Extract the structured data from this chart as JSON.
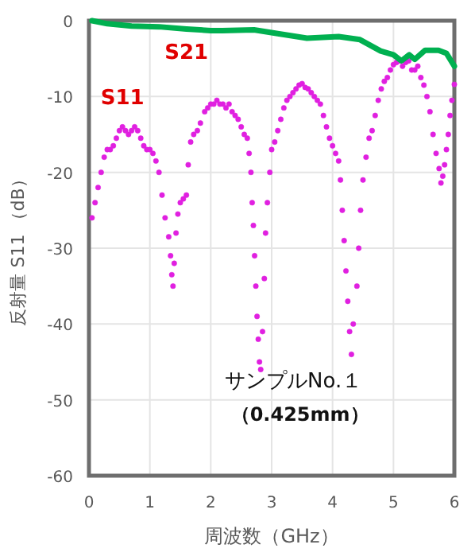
{
  "chart_data": {
    "type": "scatter",
    "xlabel": "周波数（GHz）",
    "ylabel": "反射量 S11 （dB）",
    "xlim": [
      0,
      6
    ],
    "xticks": [
      0,
      1,
      2,
      3,
      4,
      5,
      6
    ],
    "ylim": [
      -60,
      0
    ],
    "yticks": [
      -60,
      -50,
      -40,
      -30,
      -20,
      -10,
      0
    ],
    "grid": true,
    "annotations": [
      "サンプルNo.１",
      "（0.425mm）"
    ],
    "series": [
      {
        "name": "S11",
        "marker": "circle",
        "color": "#e020e0",
        "x": [
          0.05,
          0.1,
          0.15,
          0.2,
          0.25,
          0.3,
          0.35,
          0.4,
          0.45,
          0.5,
          0.55,
          0.6,
          0.65,
          0.7,
          0.75,
          0.8,
          0.85,
          0.9,
          0.95,
          1.0,
          1.05,
          1.1,
          1.15,
          1.2,
          1.25,
          1.31,
          1.34,
          1.36,
          1.38,
          1.4,
          1.43,
          1.46,
          1.5,
          1.55,
          1.6,
          1.63,
          1.67,
          1.72,
          1.78,
          1.83,
          1.9,
          1.95,
          2.0,
          2.05,
          2.1,
          2.15,
          2.2,
          2.25,
          2.3,
          2.35,
          2.4,
          2.45,
          2.5,
          2.55,
          2.6,
          2.63,
          2.66,
          2.68,
          2.7,
          2.72,
          2.74,
          2.76,
          2.78,
          2.8,
          2.82,
          2.85,
          2.88,
          2.9,
          2.93,
          2.97,
          3.0,
          3.05,
          3.1,
          3.15,
          3.2,
          3.25,
          3.3,
          3.35,
          3.4,
          3.45,
          3.5,
          3.55,
          3.6,
          3.65,
          3.7,
          3.75,
          3.8,
          3.85,
          3.9,
          3.95,
          4.0,
          4.05,
          4.1,
          4.13,
          4.16,
          4.19,
          4.22,
          4.25,
          4.28,
          4.31,
          4.34,
          4.4,
          4.43,
          4.46,
          4.5,
          4.55,
          4.6,
          4.65,
          4.7,
          4.75,
          4.8,
          4.85,
          4.9,
          4.95,
          5.0,
          5.05,
          5.1,
          5.15,
          5.2,
          5.25,
          5.3,
          5.35,
          5.4,
          5.45,
          5.5,
          5.55,
          5.6,
          5.65,
          5.7,
          5.75,
          5.78,
          5.81,
          5.84,
          5.87,
          5.9,
          5.93,
          5.96,
          6.0
        ],
        "values": [
          -26,
          -24,
          -22,
          -20,
          -18,
          -17,
          -17,
          -16.5,
          -15.5,
          -14.5,
          -14,
          -14.5,
          -15,
          -14.5,
          -14,
          -14.5,
          -15.5,
          -16.5,
          -17,
          -17,
          -17.5,
          -18.5,
          -20,
          -23,
          -26,
          -28.5,
          -31,
          -33.5,
          -35,
          -32,
          -28,
          -25.5,
          -24,
          -23.5,
          -23,
          -19,
          -16,
          -15,
          -14.5,
          -13.5,
          -12,
          -11.5,
          -11,
          -11,
          -10.5,
          -11,
          -11,
          -11.5,
          -11,
          -12,
          -12.5,
          -13,
          -14,
          -15,
          -15.5,
          -17.5,
          -20,
          -24,
          -27,
          -31,
          -35,
          -39,
          -42,
          -45,
          -46,
          -41,
          -34,
          -28,
          -24,
          -20,
          -17,
          -16,
          -14.5,
          -13,
          -11.5,
          -10.5,
          -10,
          -9.5,
          -9,
          -8.5,
          -8.3,
          -8.8,
          -9,
          -9.5,
          -10,
          -10.5,
          -11,
          -12.5,
          -14,
          -15.5,
          -16.5,
          -17.5,
          -18.5,
          -21,
          -25,
          -29,
          -33,
          -37,
          -41,
          -44,
          -40,
          -35,
          -30,
          -25,
          -21,
          -18,
          -15.5,
          -14.5,
          -12.5,
          -10.5,
          -9,
          -8,
          -7.5,
          -6.5,
          -5.8,
          -5.5,
          -5.3,
          -6,
          -5.5,
          -5.3,
          -6.5,
          -6.5,
          -6,
          -7.5,
          -8.5,
          -10,
          -12,
          -15,
          -17.5,
          -19.5,
          -21.4,
          -20.5,
          -19,
          -17,
          -15,
          -12.5,
          -10.5,
          -8.4
        ]
      },
      {
        "name": "S21",
        "type": "line",
        "marker": "none",
        "color": "#00b050",
        "x": [
          0.05,
          0.3,
          0.7,
          1.15,
          1.6,
          2.0,
          2.19,
          2.71,
          3.1,
          3.58,
          4.1,
          4.45,
          4.79,
          5.0,
          5.13,
          5.26,
          5.35,
          5.52,
          5.74,
          5.87,
          6.0
        ],
        "values": [
          0,
          -0.4,
          -0.7,
          -0.8,
          -1.1,
          -1.3,
          -1.3,
          -1.2,
          -1.7,
          -2.3,
          -2.1,
          -2.5,
          -4,
          -4.5,
          -5.3,
          -4.5,
          -5.1,
          -3.9,
          -3.9,
          -4.3,
          -6
        ]
      }
    ]
  }
}
